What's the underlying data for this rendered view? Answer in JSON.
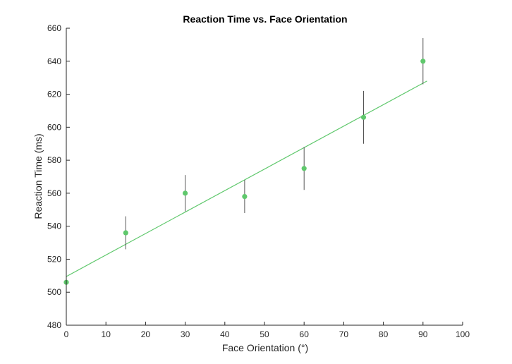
{
  "chart_data": {
    "type": "scatter",
    "title": "Reaction Time vs. Face Orientation",
    "xlabel": "Face Orientation (°)",
    "ylabel": "Reaction Time (ms)",
    "xlim": [
      0,
      100
    ],
    "ylim": [
      480,
      660
    ],
    "xticks": [
      "0",
      "10",
      "20",
      "30",
      "40",
      "50",
      "60",
      "70",
      "80",
      "90",
      "100"
    ],
    "yticks": [
      "480",
      "500",
      "520",
      "540",
      "560",
      "580",
      "600",
      "620",
      "640",
      "660"
    ],
    "grid": false,
    "legend": "none",
    "series": [
      {
        "x": [
          0,
          15,
          30,
          45,
          60,
          75,
          90
        ],
        "y": [
          506,
          536,
          560,
          558,
          575,
          606,
          640
        ],
        "error": [
          0,
          10,
          11,
          10,
          13,
          16,
          14
        ],
        "color": "#5fc86c"
      }
    ],
    "fit_line": {
      "x": [
        0,
        91
      ],
      "y": [
        509.5,
        628
      ],
      "color": "#5fc86c"
    },
    "errorbar_color": "#555555"
  }
}
